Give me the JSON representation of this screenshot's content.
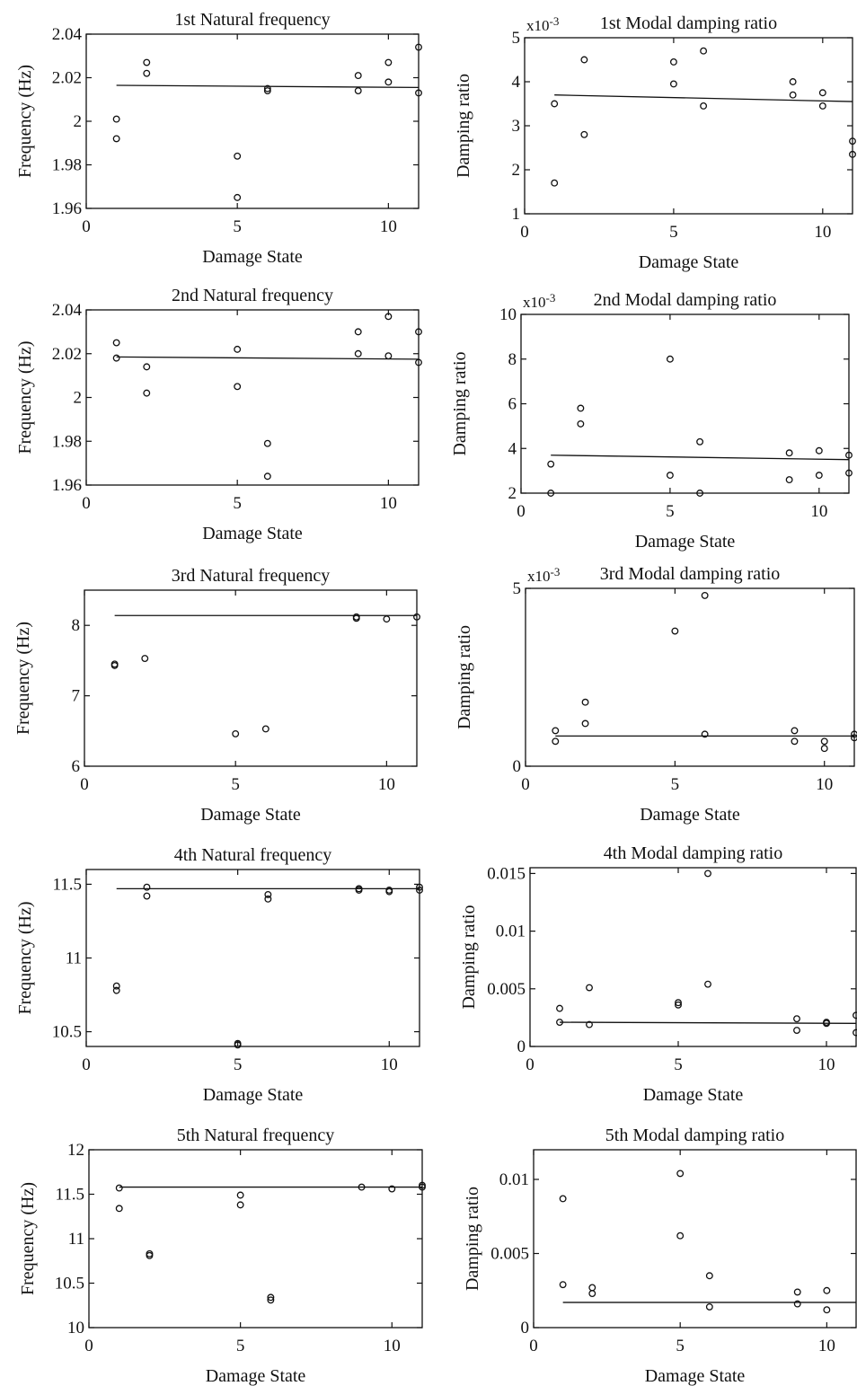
{
  "chart_data": [
    {
      "id": "p1",
      "type": "scatter",
      "title": "1st Natural frequency",
      "xlabel": "Damage State",
      "ylabel": "Frequency (Hz)",
      "xlim": [
        0,
        11
      ],
      "ylim": [
        1.96,
        2.04
      ],
      "xticks": [
        0,
        5,
        10
      ],
      "xtick_labels": [
        "0",
        "5",
        "10"
      ],
      "yticks": [
        1.96,
        1.98,
        2,
        2.02,
        2.04
      ],
      "ytick_labels": [
        "1.96",
        "1.98",
        "2",
        "2.02",
        "2.04"
      ],
      "scale_label": "",
      "points": [
        [
          1,
          2.001
        ],
        [
          1,
          1.992
        ],
        [
          2,
          2.027
        ],
        [
          2,
          2.022
        ],
        [
          5,
          1.984
        ],
        [
          5,
          1.965
        ],
        [
          6,
          2.015
        ],
        [
          6,
          2.014
        ],
        [
          9,
          2.021
        ],
        [
          9,
          2.014
        ],
        [
          10,
          2.027
        ],
        [
          10,
          2.018
        ],
        [
          11,
          2.034
        ],
        [
          11,
          2.013
        ]
      ],
      "fit_line": [
        [
          1,
          2.0165
        ],
        [
          11,
          2.0155
        ]
      ]
    },
    {
      "id": "p2",
      "type": "scatter",
      "title": "1st Modal damping ratio",
      "xlabel": "Damage State",
      "ylabel": "Damping ratio",
      "xlim": [
        0,
        11
      ],
      "ylim": [
        1,
        5
      ],
      "xticks": [
        0,
        5,
        10
      ],
      "xtick_labels": [
        "0",
        "5",
        "10"
      ],
      "yticks": [
        1,
        2,
        3,
        4,
        5
      ],
      "ytick_labels": [
        "1",
        "2",
        "3",
        "4",
        "5"
      ],
      "scale_label": "x10-3",
      "points": [
        [
          1,
          3.5
        ],
        [
          1,
          1.7
        ],
        [
          2,
          4.5
        ],
        [
          2,
          2.8
        ],
        [
          5,
          4.45
        ],
        [
          5,
          3.95
        ],
        [
          6,
          4.7
        ],
        [
          6,
          3.45
        ],
        [
          9,
          4.0
        ],
        [
          9,
          3.7
        ],
        [
          10,
          3.75
        ],
        [
          10,
          3.45
        ],
        [
          11,
          2.65
        ],
        [
          11,
          2.35
        ]
      ],
      "fit_line": [
        [
          1,
          3.7
        ],
        [
          11,
          3.55
        ]
      ]
    },
    {
      "id": "p3",
      "type": "scatter",
      "title": "2nd Natural frequency",
      "xlabel": "Damage State",
      "ylabel": "Frequency (Hz)",
      "xlim": [
        0,
        11
      ],
      "ylim": [
        1.96,
        2.04
      ],
      "xticks": [
        0,
        5,
        10
      ],
      "xtick_labels": [
        "0",
        "5",
        "10"
      ],
      "yticks": [
        1.96,
        1.98,
        2,
        2.02,
        2.04
      ],
      "ytick_labels": [
        "1.96",
        "1.98",
        "2",
        "2.02",
        "2.04"
      ],
      "scale_label": "",
      "points": [
        [
          1,
          2.025
        ],
        [
          1,
          2.018
        ],
        [
          2,
          2.014
        ],
        [
          2,
          2.002
        ],
        [
          5,
          2.022
        ],
        [
          5,
          2.005
        ],
        [
          6,
          1.979
        ],
        [
          6,
          1.964
        ],
        [
          9,
          2.03
        ],
        [
          9,
          2.02
        ],
        [
          10,
          2.037
        ],
        [
          10,
          2.019
        ],
        [
          11,
          2.03
        ],
        [
          11,
          2.016
        ]
      ],
      "fit_line": [
        [
          1,
          2.0185
        ],
        [
          11,
          2.0175
        ]
      ]
    },
    {
      "id": "p4",
      "type": "scatter",
      "title": "2nd Modal damping ratio",
      "xlabel": "Damage State",
      "ylabel": "Damping ratio",
      "xlim": [
        0,
        11
      ],
      "ylim": [
        2,
        10
      ],
      "xticks": [
        0,
        5,
        10
      ],
      "xtick_labels": [
        "0",
        "5",
        "10"
      ],
      "yticks": [
        2,
        4,
        6,
        8,
        10
      ],
      "ytick_labels": [
        "2",
        "4",
        "6",
        "8",
        "10"
      ],
      "scale_label": "x10-3",
      "points": [
        [
          1,
          3.3
        ],
        [
          1,
          2.0
        ],
        [
          2,
          5.8
        ],
        [
          2,
          5.1
        ],
        [
          5,
          8.0
        ],
        [
          5,
          2.8
        ],
        [
          6,
          4.3
        ],
        [
          6,
          2.0
        ],
        [
          9,
          3.8
        ],
        [
          9,
          2.6
        ],
        [
          10,
          3.9
        ],
        [
          10,
          2.8
        ],
        [
          11,
          3.7
        ],
        [
          11,
          2.9
        ]
      ],
      "fit_line": [
        [
          1,
          3.7
        ],
        [
          11,
          3.5
        ]
      ]
    },
    {
      "id": "p5",
      "type": "scatter",
      "title": "3rd Natural frequency",
      "xlabel": "Damage State",
      "ylabel": "Frequency (Hz)",
      "xlim": [
        0,
        11
      ],
      "ylim": [
        6,
        8.5
      ],
      "xticks": [
        0,
        5,
        10
      ],
      "xtick_labels": [
        "0",
        "5",
        "10"
      ],
      "yticks": [
        6,
        7,
        8
      ],
      "ytick_labels": [
        "6",
        "7",
        "8"
      ],
      "scale_label": "",
      "points": [
        [
          1,
          7.45
        ],
        [
          1,
          7.43
        ],
        [
          2,
          7.53
        ],
        [
          5,
          6.46
        ],
        [
          6,
          6.53
        ],
        [
          9,
          8.12
        ],
        [
          9,
          8.1
        ],
        [
          10,
          8.09
        ],
        [
          11,
          8.12
        ]
      ],
      "fit_line": [
        [
          1,
          8.14
        ],
        [
          11,
          8.14
        ]
      ]
    },
    {
      "id": "p6",
      "type": "scatter",
      "title": "3rd Modal damping ratio",
      "xlabel": "Damage State",
      "ylabel": "Damping ratio",
      "xlim": [
        0,
        11
      ],
      "ylim": [
        0,
        5
      ],
      "xticks": [
        0,
        5,
        10
      ],
      "xtick_labels": [
        "0",
        "5",
        "10"
      ],
      "yticks": [
        0,
        5
      ],
      "ytick_labels": [
        "0",
        "5"
      ],
      "scale_label": "x10-3",
      "points": [
        [
          1,
          1.0
        ],
        [
          1,
          0.7
        ],
        [
          2,
          1.8
        ],
        [
          2,
          1.2
        ],
        [
          5,
          3.8
        ],
        [
          6,
          4.8
        ],
        [
          6,
          0.9
        ],
        [
          9,
          1.0
        ],
        [
          9,
          0.7
        ],
        [
          10,
          0.7
        ],
        [
          10,
          0.5
        ],
        [
          11,
          0.9
        ],
        [
          11,
          0.8
        ]
      ],
      "fit_line": [
        [
          1,
          0.85
        ],
        [
          11,
          0.85
        ]
      ]
    },
    {
      "id": "p7",
      "type": "scatter",
      "title": "4th Natural frequency",
      "xlabel": "Damage State",
      "ylabel": "Frequency (Hz)",
      "xlim": [
        0,
        11
      ],
      "ylim": [
        10.4,
        11.6
      ],
      "xticks": [
        0,
        5,
        10
      ],
      "xtick_labels": [
        "0",
        "5",
        "10"
      ],
      "yticks": [
        10.5,
        11,
        11.5
      ],
      "ytick_labels": [
        "10.5",
        "11",
        "11.5"
      ],
      "scale_label": "",
      "points": [
        [
          1,
          10.81
        ],
        [
          1,
          10.78
        ],
        [
          2,
          11.48
        ],
        [
          2,
          11.42
        ],
        [
          5,
          10.42
        ],
        [
          5,
          10.41
        ],
        [
          6,
          11.43
        ],
        [
          6,
          11.4
        ],
        [
          9,
          11.47
        ],
        [
          9,
          11.46
        ],
        [
          10,
          11.46
        ],
        [
          10,
          11.45
        ],
        [
          11,
          11.48
        ],
        [
          11,
          11.46
        ]
      ],
      "fit_line": [
        [
          1,
          11.47
        ],
        [
          11,
          11.47
        ]
      ]
    },
    {
      "id": "p8",
      "type": "scatter",
      "title": "4th Modal damping ratio",
      "xlabel": "Damage State",
      "ylabel": "Damping ratio",
      "xlim": [
        0,
        11
      ],
      "ylim": [
        0,
        0.0155
      ],
      "xticks": [
        0,
        5,
        10
      ],
      "xtick_labels": [
        "0",
        "5",
        "10"
      ],
      "yticks": [
        0,
        0.005,
        0.01,
        0.015
      ],
      "ytick_labels": [
        "0",
        "0.005",
        "0.01",
        "0.015"
      ],
      "scale_label": "",
      "points": [
        [
          1,
          0.0033
        ],
        [
          1,
          0.0021
        ],
        [
          2,
          0.0051
        ],
        [
          2,
          0.0019
        ],
        [
          5,
          0.0038
        ],
        [
          5,
          0.0036
        ],
        [
          6,
          0.015
        ],
        [
          6,
          0.0054
        ],
        [
          9,
          0.0024
        ],
        [
          9,
          0.0014
        ],
        [
          10,
          0.0021
        ],
        [
          10,
          0.002
        ],
        [
          11,
          0.0027
        ],
        [
          11,
          0.0012
        ]
      ],
      "fit_line": [
        [
          1,
          0.0021
        ],
        [
          11,
          0.002
        ]
      ]
    },
    {
      "id": "p9",
      "type": "scatter",
      "title": "5th Natural frequency",
      "xlabel": "Damage State",
      "ylabel": "Frequency (Hz)",
      "xlim": [
        0,
        11
      ],
      "ylim": [
        10,
        12
      ],
      "xticks": [
        0,
        5,
        10
      ],
      "xtick_labels": [
        "0",
        "5",
        "10"
      ],
      "yticks": [
        10,
        10.5,
        11,
        11.5,
        12
      ],
      "ytick_labels": [
        "10",
        "10.5",
        "11",
        "11.5",
        "12"
      ],
      "scale_label": "",
      "points": [
        [
          1,
          11.57
        ],
        [
          1,
          11.34
        ],
        [
          2,
          10.83
        ],
        [
          2,
          10.81
        ],
        [
          5,
          11.49
        ],
        [
          5,
          11.38
        ],
        [
          6,
          10.34
        ],
        [
          6,
          10.31
        ],
        [
          9,
          11.58
        ],
        [
          10,
          11.56
        ],
        [
          11,
          11.6
        ],
        [
          11,
          11.58
        ]
      ],
      "fit_line": [
        [
          1,
          11.58
        ],
        [
          11,
          11.58
        ]
      ]
    },
    {
      "id": "p10",
      "type": "scatter",
      "title": "5th Modal damping ratio",
      "xlabel": "Damage State",
      "ylabel": "Damping ratio",
      "xlim": [
        0,
        11
      ],
      "ylim": [
        0,
        0.012
      ],
      "xticks": [
        0,
        5,
        10
      ],
      "xtick_labels": [
        "0",
        "5",
        "10"
      ],
      "yticks": [
        0,
        0.005,
        0.01
      ],
      "ytick_labels": [
        "0",
        "0.005",
        "0.01"
      ],
      "scale_label": "",
      "points": [
        [
          1,
          0.0087
        ],
        [
          1,
          0.0029
        ],
        [
          2,
          0.0027
        ],
        [
          2,
          0.0023
        ],
        [
          5,
          0.0104
        ],
        [
          5,
          0.0062
        ],
        [
          6,
          0.0035
        ],
        [
          6,
          0.0014
        ],
        [
          9,
          0.0024
        ],
        [
          9,
          0.0016
        ],
        [
          10,
          0.0025
        ],
        [
          10,
          0.0012
        ]
      ],
      "fit_line": [
        [
          1,
          0.0017
        ],
        [
          11,
          0.0017
        ]
      ]
    }
  ]
}
